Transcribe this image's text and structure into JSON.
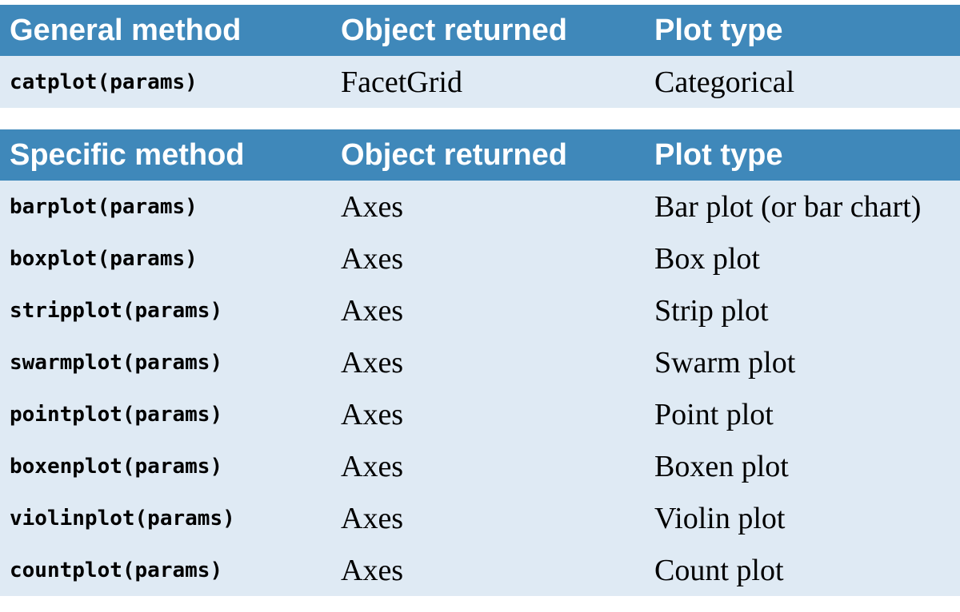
{
  "general": {
    "headers": [
      "General method",
      "Object returned",
      "Plot type"
    ],
    "rows": [
      {
        "method": "catplot(params)",
        "returned": "FacetGrid",
        "plot_type": "Categorical"
      }
    ]
  },
  "specific": {
    "headers": [
      "Specific method",
      "Object returned",
      "Plot type"
    ],
    "rows": [
      {
        "method": "barplot(params)",
        "returned": "Axes",
        "plot_type": "Bar plot (or bar chart)"
      },
      {
        "method": "boxplot(params)",
        "returned": "Axes",
        "plot_type": "Box plot"
      },
      {
        "method": "stripplot(params)",
        "returned": "Axes",
        "plot_type": "Strip plot"
      },
      {
        "method": "swarmplot(params)",
        "returned": "Axes",
        "plot_type": "Swarm plot"
      },
      {
        "method": "pointplot(params)",
        "returned": "Axes",
        "plot_type": "Point plot"
      },
      {
        "method": "boxenplot(params)",
        "returned": "Axes",
        "plot_type": "Boxen plot"
      },
      {
        "method": "violinplot(params)",
        "returned": "Axes",
        "plot_type": "Violin plot"
      },
      {
        "method": "countplot(params)",
        "returned": "Axes",
        "plot_type": "Count plot"
      }
    ]
  },
  "colors": {
    "header_bg": "#3f88ba",
    "header_text": "#ffffff",
    "row_bg": "#dfeaf4"
  }
}
